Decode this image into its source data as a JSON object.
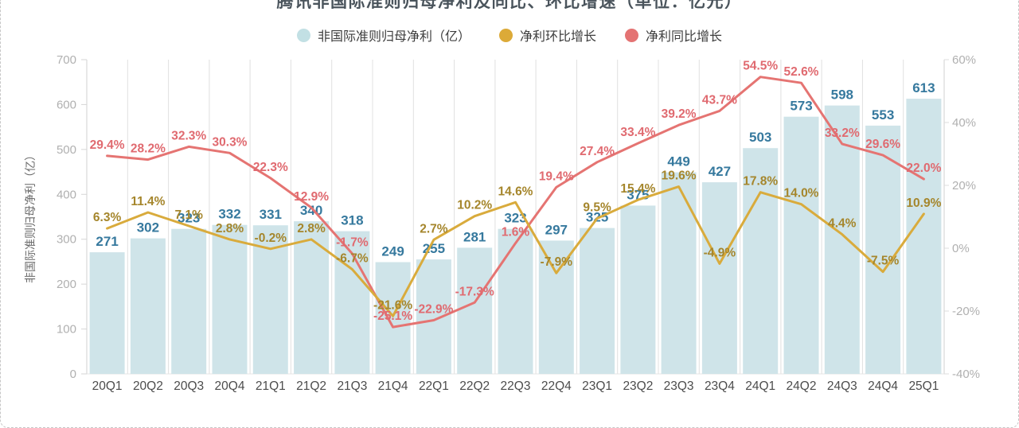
{
  "page": {
    "title": "腾讯非国际准则归母净利及同比、环比增速（单位：亿元）"
  },
  "legend": {
    "items": [
      {
        "label": "非国际准则归母净利（亿）",
        "color": "#c2e0e4"
      },
      {
        "label": "净利环比增长",
        "color": "#dcaa38"
      },
      {
        "label": "净利同比增长",
        "color": "#e47373"
      }
    ]
  },
  "chart_data": {
    "type": "bar",
    "subtype": "bar+line combo, dual y-axis",
    "categories": [
      "20Q1",
      "20Q2",
      "20Q3",
      "20Q4",
      "21Q1",
      "21Q2",
      "21Q3",
      "21Q4",
      "22Q1",
      "22Q2",
      "22Q3",
      "22Q4",
      "23Q1",
      "23Q2",
      "23Q3",
      "23Q4",
      "24Q1",
      "24Q2",
      "24Q3",
      "24Q4",
      "25Q1"
    ],
    "series": [
      {
        "name": "非国际准则归母净利（亿）",
        "type": "bar",
        "y_axis": "left",
        "color": "#cfe4e9",
        "label_color": "#36799e",
        "values": [
          271,
          302,
          323,
          332,
          331,
          340,
          318,
          249,
          255,
          281,
          323,
          297,
          325,
          375,
          449,
          427,
          503,
          573,
          598,
          553,
          613
        ]
      },
      {
        "name": "净利环比增长",
        "type": "line",
        "y_axis": "right",
        "color": "#d9ab3c",
        "label_color": "#a5862c",
        "values": [
          6.3,
          11.4,
          7.1,
          2.8,
          -0.2,
          2.8,
          -6.7,
          -21.6,
          2.7,
          10.2,
          14.6,
          -7.9,
          9.5,
          15.4,
          19.6,
          -4.9,
          17.8,
          14.0,
          4.4,
          -7.5,
          10.9
        ],
        "labels": [
          "6.3%",
          "11.4%",
          "7.1%",
          "2.8%",
          "-0.2%",
          "2.8%",
          "-6.7%",
          "-21.6%",
          "2.7%",
          "10.2%",
          "14.6%",
          "-7.9%",
          "9.5%",
          "15.4%",
          "19.6%",
          "-4.9%",
          "17.8%",
          "14.0%",
          "4.4%",
          "-7.5%",
          "10.9%"
        ]
      },
      {
        "name": "净利同比增长",
        "type": "line",
        "y_axis": "right",
        "color": "#e57472",
        "label_color": "#e06a70",
        "values": [
          29.4,
          28.2,
          32.3,
          30.3,
          22.3,
          12.9,
          -1.7,
          -25.1,
          -22.9,
          -17.3,
          1.6,
          19.4,
          27.4,
          33.4,
          39.2,
          43.7,
          54.5,
          52.6,
          33.2,
          29.6,
          22.0
        ],
        "labels": [
          "29.4%",
          "28.2%",
          "32.3%",
          "30.3%",
          "22.3%",
          "12.9%",
          "-1.7%",
          "-25.1%",
          "-22.9%",
          "-17.3%",
          "1.6%",
          "19.4%",
          "27.4%",
          "33.4%",
          "39.2%",
          "43.7%",
          "54.5%",
          "52.6%",
          "33.2%",
          "29.6%",
          "22.0%"
        ]
      }
    ],
    "left_axis": {
      "title": "非国际准则归母净利（亿）",
      "min": 0,
      "max": 700,
      "ticks": [
        700,
        600,
        500,
        400,
        300,
        200,
        100,
        0
      ]
    },
    "right_axis": {
      "min": -40,
      "max": 60,
      "ticks": [
        60,
        40,
        20,
        0,
        -20,
        -40
      ],
      "suffix": "%"
    },
    "legend_position": "top",
    "grid": "vertical category separators only"
  }
}
